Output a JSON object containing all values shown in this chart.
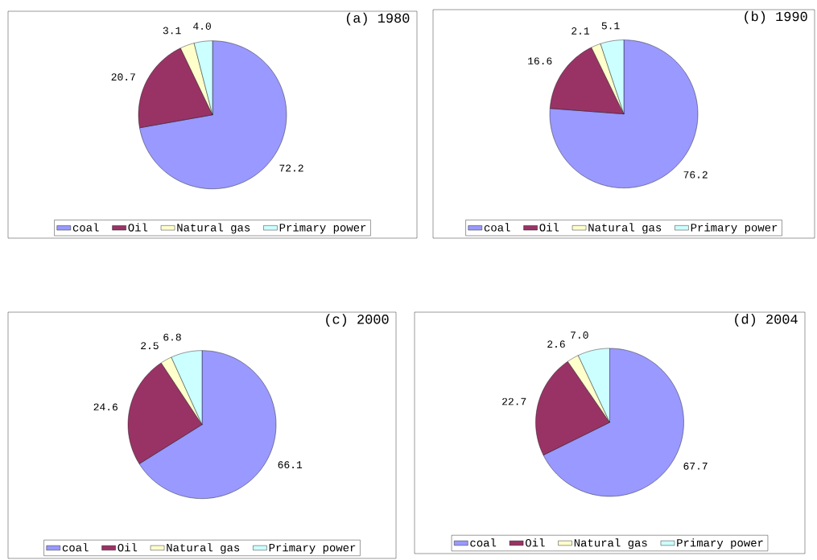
{
  "chart_data": [
    {
      "type": "pie",
      "title": "(a) 1980",
      "categories": [
        "coal",
        "Oil",
        "Natural gas",
        "Primary power"
      ],
      "values": [
        72.2,
        20.7,
        3.1,
        4.0
      ],
      "value_labels": [
        "72.2",
        "20.7",
        "3.1",
        "4.0"
      ],
      "colors": [
        "#9999ff",
        "#993366",
        "#ffffcc",
        "#ccffff"
      ],
      "legend": "bottom"
    },
    {
      "type": "pie",
      "title": "(b) 1990",
      "categories": [
        "coal",
        "Oil",
        "Natural gas",
        "Primary power"
      ],
      "values": [
        76.2,
        16.6,
        2.1,
        5.1
      ],
      "colors": [
        "#9999ff",
        "#993366",
        "#ffffcc",
        "#ccffff"
      ],
      "data_labels": true,
      "legend": "bottom"
    },
    {
      "type": "pie",
      "title": "(c) 2000",
      "categories": [
        "coal",
        "Oil",
        "Natural gas",
        "Primary power"
      ],
      "values": [
        66.1,
        24.6,
        2.5,
        6.8
      ],
      "colors": [
        "#9999ff",
        "#993366",
        "#ffffcc",
        "#ccffff"
      ],
      "data_labels": true,
      "legend": "bottom"
    },
    {
      "type": "pie",
      "title": "(d) 2004",
      "categories": [
        "coal",
        "Oil",
        "Natural gas",
        "Primary power"
      ],
      "values": [
        67.7,
        22.7,
        2.6,
        7.0
      ],
      "value_labels": [
        "67.7",
        "22.7",
        "2.6",
        "7.0"
      ],
      "colors": [
        "#9999ff",
        "#993366",
        "#ffffcc",
        "#ccffff"
      ],
      "legend": "bottom"
    }
  ]
}
